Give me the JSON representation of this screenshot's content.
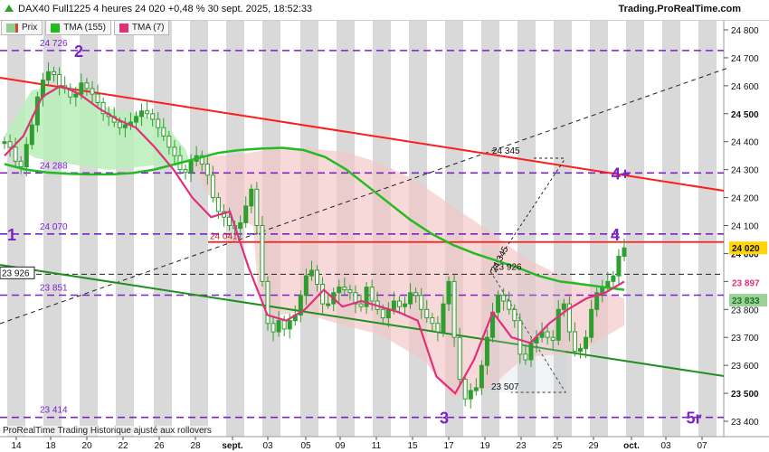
{
  "header": {
    "title": "DAX40 Full1225 4 heures 24 020 +0,48 % 30 sept. 2025, 18:52:33",
    "brand": "Trading.ProRealTime.com"
  },
  "legend": [
    {
      "label": "Prix",
      "color": "#2e9e2e"
    },
    {
      "label": "TMA (155)",
      "color": "#22bb22"
    },
    {
      "label": "TMA (7)",
      "color": "#e0307a"
    }
  ],
  "footer": "ProRealTime Trading  Historique ajusté aux rollovers",
  "colors": {
    "band": "#9a9a9a",
    "level_line": "#7b22c9",
    "resistance": "#ff1c1c",
    "support": "#1f8f1f",
    "tma155": "#22bb22",
    "tma7": "#e0307a",
    "candle": "#2e9e2e",
    "fill_above": "#b8efb8",
    "fill_below": "#f5c4c4"
  },
  "chart_data": {
    "type": "candlestick",
    "title": "DAX40 Full1225 4 heures",
    "ylim": [
      23390,
      24840
    ],
    "y_ticks": [
      "24 800",
      "24 700",
      "24 600",
      "24 500",
      "24 400",
      "24 300",
      "24 200",
      "24 100",
      "24 000",
      "23 900",
      "23 800",
      "23 700",
      "23 600",
      "23 500",
      "23 400"
    ],
    "x_labels": [
      "14",
      "18",
      "20",
      "22",
      "26",
      "28",
      "sept.",
      "03",
      "05",
      "09",
      "11",
      "15",
      "17",
      "19",
      "23",
      "25",
      "29",
      "oct.",
      "03",
      "07"
    ],
    "last_price_label": "24 020",
    "tma155_label": "23 897",
    "tma7_label": "23 833",
    "levels": [
      {
        "label": "24 726",
        "value": 24726
      },
      {
        "label": "24 288",
        "value": 24288
      },
      {
        "label": "24 070",
        "value": 24070
      },
      {
        "label": "23 851",
        "value": 23851
      },
      {
        "label": "23 414",
        "value": 23414
      }
    ],
    "annotations": [
      {
        "text": "2",
        "x": 87,
        "y": 24726
      },
      {
        "text": "1",
        "x": 13,
        "y": 24070
      },
      {
        "text": "4+",
        "x": 686,
        "y": 24288
      },
      {
        "text": "4",
        "x": 680,
        "y": 24070
      },
      {
        "text": "3",
        "x": 491,
        "y": 23414
      },
      {
        "text": "5r",
        "x": 767,
        "y": 23414
      }
    ],
    "price_labels": [
      {
        "text": "24 041",
        "value": 24041
      },
      {
        "text": "24 345",
        "value": 24345
      },
      {
        "text": "23 926",
        "value": 23926
      },
      {
        "text": "23 926",
        "value": 23926,
        "boxed": true
      },
      {
        "text": "23 507",
        "value": 23507
      },
      {
        "text": "24 345",
        "value": 24345,
        "rotated": true
      }
    ],
    "series": [
      {
        "name": "Prix",
        "values": [
          24400,
          24380,
          24330,
          24310,
          24390,
          24460,
          24560,
          24620,
          24650,
          24640,
          24600,
          24590,
          24560,
          24570,
          24610,
          24590,
          24570,
          24540,
          24500,
          24490,
          24470,
          24450,
          24460,
          24470,
          24490,
          24510,
          24500,
          24480,
          24450,
          24420,
          24380,
          24350,
          24300,
          24290,
          24330,
          24350,
          24320,
          24280,
          24200,
          24150,
          24130,
          24100,
          24090,
          24110,
          24170,
          24230,
          24100,
          23900,
          23750,
          23720,
          23760,
          23730,
          23760,
          23780,
          23850,
          23920,
          23940,
          23890,
          23820,
          23820,
          23860,
          23880,
          23870,
          23860,
          23820,
          23810,
          23880,
          23830,
          23800,
          23770,
          23800,
          23830,
          23810,
          23820,
          23860,
          23850,
          23800,
          23770,
          23750,
          23720,
          23820,
          23900,
          23700,
          23550,
          23480,
          23510,
          23520,
          23600,
          23700,
          23790,
          23850,
          23830,
          23800,
          23760,
          23640,
          23620,
          23680,
          23700,
          23720,
          23700,
          23690,
          23800,
          23820,
          23720,
          23650,
          23660,
          23700,
          23800,
          23860,
          23880,
          23900,
          23920,
          23990,
          24020
        ]
      },
      {
        "name": "TMA (155)",
        "values": [
          24320,
          24300,
          24290,
          24285,
          24283,
          24283,
          24288,
          24300,
          24320,
          24340,
          24360,
          24370,
          24375,
          24378,
          24370,
          24345,
          24300,
          24240,
          24180,
          24120,
          24070,
          24030,
          24000,
          23975,
          23950,
          23920,
          23900,
          23890,
          23880,
          23870
        ]
      },
      {
        "name": "TMA (7)",
        "values": [
          24350,
          24420,
          24560,
          24600,
          24570,
          24520,
          24480,
          24450,
          24380,
          24300,
          24200,
          24130,
          24150,
          23950,
          23780,
          23760,
          23800,
          23870,
          23810,
          23830,
          23810,
          23790,
          23760,
          23560,
          23500,
          23620,
          23790,
          23700,
          23680,
          23750,
          23800,
          23840,
          23860,
          23900
        ]
      }
    ]
  }
}
